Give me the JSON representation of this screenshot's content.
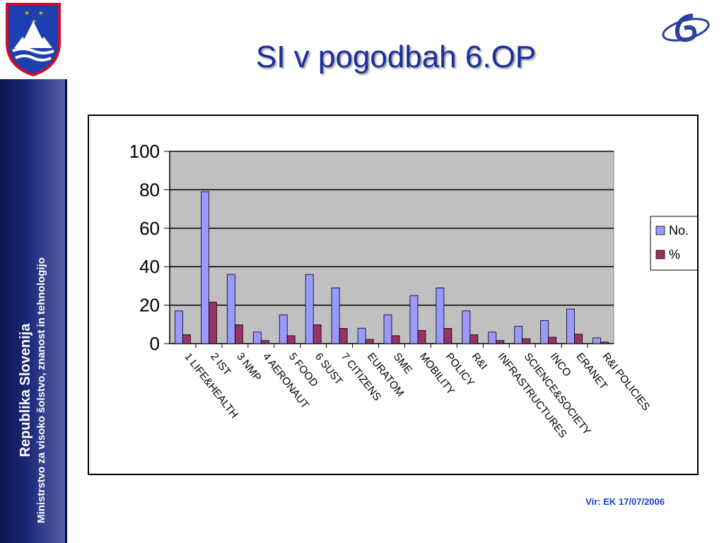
{
  "header": {
    "title": "SI v pogodbah 6.OP",
    "crest_icon": "slovenia-coat-of-arms-icon",
    "program_logo_icon": "fp6-logo-icon"
  },
  "sidebar": {
    "title": "Republika Slovenija",
    "subtitle": "Ministrstvo za visoko šolstvo, znanost in tehnologijo"
  },
  "footer": {
    "source": "Vir: EK 17/07/2006"
  },
  "colors": {
    "series_no": "#9999ff",
    "series_pct": "#993366",
    "plot_bg": "#c0c0c0",
    "title": "#1b2ea0"
  },
  "chart_data": {
    "type": "bar",
    "categories": [
      "1 LIFE&HEALTH",
      "2 IST",
      "3 NMP",
      "4 AERONAUT",
      "5 FOOD",
      "6 SUST",
      "7 CITIZENS",
      "EURATOM",
      "SME",
      "MOBILITY",
      "POLICY",
      "R&I",
      "INFRASTRUCTURES",
      "SCIENCE&SOCIETY",
      "INCO",
      "ERANET",
      "R&I POLICIES"
    ],
    "series": [
      {
        "name": "No.",
        "values": [
          17,
          79,
          36,
          6,
          15,
          36,
          29,
          8,
          15,
          25,
          29,
          17,
          6,
          9,
          12,
          18,
          3
        ]
      },
      {
        "name": "%",
        "values": [
          4.6,
          21.6,
          9.8,
          1.6,
          4.1,
          9.8,
          7.9,
          2.2,
          4.1,
          6.8,
          7.9,
          4.6,
          1.6,
          2.5,
          3.3,
          4.9,
          0.8
        ]
      }
    ],
    "yticks": [
      0,
      20,
      40,
      60,
      80,
      100
    ],
    "ylim": [
      0,
      100
    ],
    "grid": true,
    "legend": "right"
  }
}
